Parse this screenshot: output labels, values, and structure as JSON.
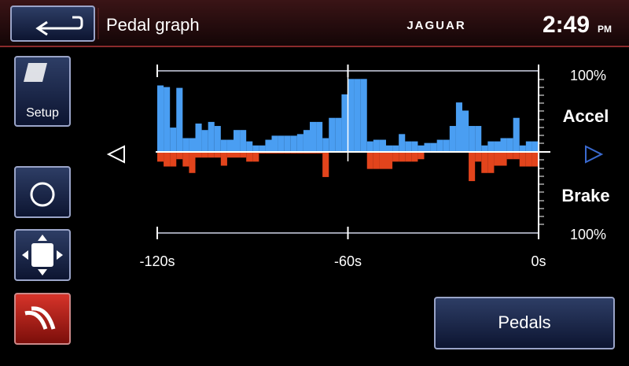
{
  "header": {
    "title": "Pedal graph",
    "brand": "JAGUAR",
    "time": "2:49",
    "ampm": "PM"
  },
  "sidebar": {
    "setup": "Setup"
  },
  "chart_data": {
    "type": "bar",
    "x": [
      -120,
      -118,
      -116,
      -114,
      -112,
      -110,
      -108,
      -106,
      -104,
      -102,
      -100,
      -98,
      -96,
      -94,
      -92,
      -90,
      -88,
      -86,
      -84,
      -82,
      -80,
      -78,
      -76,
      -74,
      -72,
      -70,
      -68,
      -66,
      -64,
      -62,
      -60,
      -58,
      -56,
      -54,
      -52,
      -50,
      -48,
      -46,
      -44,
      -42,
      -40,
      -38,
      -36,
      -34,
      -32,
      -30,
      -28,
      -26,
      -24,
      -22,
      -20,
      -18,
      -16,
      -14,
      -12,
      -10,
      -8,
      -6,
      -4,
      -2
    ],
    "series": [
      {
        "name": "Accel",
        "color": "#4a9ef2",
        "values": [
          82,
          80,
          30,
          79,
          17,
          17,
          35,
          27,
          37,
          32,
          15,
          15,
          27,
          27,
          13,
          8,
          8,
          15,
          20,
          20,
          20,
          20,
          22,
          27,
          37,
          37,
          17,
          42,
          42,
          71,
          90,
          90,
          90,
          13,
          15,
          15,
          8,
          8,
          22,
          13,
          13,
          8,
          11,
          11,
          15,
          15,
          32,
          61,
          51,
          32,
          32,
          8,
          13,
          13,
          17,
          17,
          42,
          8,
          13,
          13
        ]
      },
      {
        "name": "Brake",
        "color": "#e2441c",
        "axis": "y2",
        "values": [
          12,
          18,
          18,
          9,
          18,
          26,
          7,
          7,
          7,
          7,
          17,
          7,
          7,
          7,
          12,
          12,
          2,
          2,
          2,
          2,
          2,
          2,
          2,
          2,
          2,
          2,
          31,
          0,
          0,
          0,
          0,
          0,
          0,
          21,
          21,
          21,
          21,
          12,
          12,
          12,
          12,
          9,
          0,
          0,
          0,
          0,
          0,
          0,
          0,
          36,
          12,
          26,
          26,
          17,
          17,
          9,
          9,
          18,
          18,
          18
        ]
      }
    ],
    "xlim": [
      -120,
      0
    ],
    "xticks": [
      {
        "value": -120,
        "label": "-120s"
      },
      {
        "value": -60,
        "label": "-60s"
      },
      {
        "value": 0,
        "label": "0s"
      }
    ],
    "ylim": [
      0,
      100
    ],
    "yticks": [
      {
        "value": 100,
        "label": "100%"
      }
    ],
    "y2lim": [
      0,
      100
    ],
    "y2ticks": [
      {
        "value": 100,
        "label": "100%"
      }
    ]
  },
  "button": "Pedals"
}
